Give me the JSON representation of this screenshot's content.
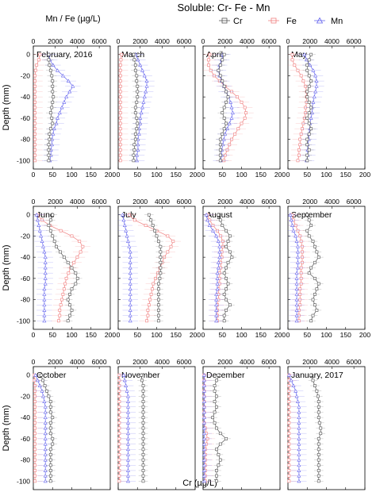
{
  "title": "Soluble: Cr- Fe - Mn",
  "top_axis_label": "Mn / Fe (µg/L)",
  "bottom_axis_label": "Cr (µg/L)",
  "y_axis_label": "Depth (mm)",
  "legend": [
    {
      "name": "Cr",
      "color": "#555555",
      "marker": "square"
    },
    {
      "name": "Fe",
      "color": "#f08080",
      "marker": "square"
    },
    {
      "name": "Mn",
      "color": "#6666ee",
      "marker": "triangle"
    }
  ],
  "chart_data": {
    "type": "scatter",
    "y_ticks": [
      0,
      -20,
      -40,
      -60,
      -80,
      -100
    ],
    "ylim": [
      -108,
      8
    ],
    "cr_ticks": [
      "0",
      "50",
      "100",
      "150",
      "200"
    ],
    "cr_xlim": [
      0,
      200
    ],
    "mnfe_ticks": [
      "0",
      "2000",
      "4000",
      "6000"
    ],
    "mnfe_xlim": [
      0,
      7000
    ],
    "depths": [
      0,
      -5,
      -10,
      -15,
      -20,
      -25,
      -30,
      -35,
      -40,
      -45,
      -50,
      -55,
      -60,
      -65,
      -70,
      -75,
      -80,
      -85,
      -90,
      -95,
      -100
    ],
    "panels": [
      {
        "label": "February, 2016",
        "Cr": [
          40,
          40,
          42,
          45,
          48,
          50,
          50,
          50,
          52,
          50,
          48,
          45,
          48,
          50,
          45,
          42,
          42,
          40,
          40,
          40,
          40
        ],
        "Fe": [
          600,
          500,
          300,
          200,
          150,
          150,
          150,
          150,
          150,
          150,
          150,
          150,
          150,
          150,
          150,
          150,
          150,
          150,
          150,
          150,
          150
        ],
        "Mn": [
          1400,
          1500,
          1800,
          2200,
          2700,
          3200,
          3600,
          3300,
          3000,
          2800,
          2600,
          2400,
          2200,
          2100,
          1900,
          1800,
          1700,
          1700,
          1600,
          1600,
          1500
        ]
      },
      {
        "label": "March",
        "Cr": [
          40,
          42,
          45,
          45,
          48,
          48,
          50,
          50,
          50,
          48,
          45,
          45,
          48,
          50,
          48,
          45,
          45,
          42,
          42,
          40,
          40
        ],
        "Fe": [
          300,
          250,
          200,
          200,
          200,
          200,
          200,
          200,
          200,
          200,
          200,
          200,
          200,
          200,
          200,
          200,
          200,
          200,
          200,
          200,
          200
        ],
        "Mn": [
          1600,
          1800,
          2000,
          2200,
          2400,
          2600,
          2600,
          2500,
          2400,
          2300,
          2200,
          2100,
          2000,
          2000,
          1900,
          1900,
          1800,
          1800,
          1800,
          1700,
          1700
        ]
      },
      {
        "label": "April",
        "Cr": [
          55,
          50,
          45,
          40,
          45,
          50,
          55,
          60,
          65,
          60,
          55,
          50,
          55,
          60,
          55,
          50,
          45,
          45,
          45,
          45,
          45
        ],
        "Fe": [
          600,
          500,
          500,
          700,
          1000,
          1500,
          2000,
          2600,
          3100,
          3500,
          3800,
          3900,
          3800,
          3500,
          3200,
          2900,
          2600,
          2400,
          2200,
          2000,
          1900
        ],
        "Mn": [
          1800,
          1700,
          1500,
          1400,
          1500,
          1700,
          1900,
          2100,
          2300,
          2500,
          2600,
          2700,
          2600,
          2400,
          2200,
          2000,
          1900,
          1800,
          1700,
          1700,
          1600
        ]
      },
      {
        "label": "May",
        "Cr": [
          60,
          55,
          50,
          50,
          55,
          60,
          55,
          50,
          50,
          55,
          60,
          55,
          50,
          55,
          60,
          55,
          50,
          50,
          55,
          50,
          50
        ],
        "Fe": [
          400,
          400,
          600,
          900,
          1200,
          1400,
          1600,
          1700,
          1700,
          1700,
          1600,
          1600,
          1500,
          1400,
          1300,
          1200,
          1100,
          1100,
          1000,
          1000,
          900
        ],
        "Mn": [
          1500,
          1700,
          2000,
          2300,
          2500,
          2600,
          2600,
          2500,
          2400,
          2300,
          2200,
          2200,
          2100,
          2000,
          2000,
          1900,
          1900,
          1800,
          1800,
          1800,
          1700
        ]
      },
      {
        "label": "June",
        "Cr": [
          50,
          45,
          40,
          45,
          50,
          55,
          60,
          70,
          80,
          90,
          100,
          110,
          115,
          110,
          100,
          95,
          90,
          95,
          100,
          95,
          90
        ],
        "Fe": [
          400,
          800,
          1500,
          2500,
          3500,
          4200,
          4500,
          4300,
          4000,
          3700,
          3400,
          3200,
          3000,
          2900,
          2800,
          2700,
          2600,
          2500,
          2400,
          2400,
          2300
        ],
        "Mn": [
          300,
          400,
          500,
          600,
          700,
          800,
          900,
          1000,
          1100,
          1100,
          1100,
          1100,
          1100,
          1100,
          1000,
          1000,
          1000,
          1000,
          1000,
          1000,
          1000
        ]
      },
      {
        "label": "July",
        "Cr": [
          80,
          85,
          90,
          95,
          100,
          105,
          110,
          110,
          110,
          110,
          110,
          110,
          108,
          105,
          105,
          105,
          105,
          105,
          105,
          105,
          105
        ],
        "Fe": [
          1000,
          1500,
          2500,
          3500,
          4500,
          5000,
          4800,
          4500,
          4200,
          4000,
          3800,
          3600,
          3400,
          3200,
          3100,
          3000,
          2900,
          2800,
          2700,
          2700,
          2600
        ],
        "Mn": [
          400,
          500,
          600,
          700,
          800,
          900,
          1000,
          1100,
          1100,
          1100,
          1100,
          1100,
          1100,
          1100,
          1100,
          1100,
          1100,
          1100,
          1100,
          1100,
          1100
        ]
      },
      {
        "label": "August",
        "Cr": [
          40,
          45,
          50,
          60,
          70,
          65,
          60,
          70,
          75,
          65,
          60,
          55,
          60,
          65,
          60,
          55,
          60,
          70,
          60,
          55,
          55
        ],
        "Fe": [
          400,
          600,
          900,
          1300,
          1600,
          1800,
          1800,
          1700,
          1700,
          1600,
          1600,
          1500,
          1500,
          1500,
          1400,
          1400,
          1400,
          1300,
          1300,
          1300,
          1300
        ],
        "Mn": [
          300,
          400,
          600,
          900,
          1200,
          1400,
          1500,
          1500,
          1500,
          1400,
          1400,
          1300,
          1300,
          1300,
          1300,
          1200,
          1200,
          1200,
          1200,
          1200,
          1200
        ]
      },
      {
        "label": "September",
        "Cr": [
          50,
          55,
          60,
          50,
          55,
          65,
          70,
          75,
          80,
          70,
          60,
          55,
          70,
          80,
          75,
          70,
          65,
          70,
          75,
          65,
          60
        ],
        "Fe": [
          400,
          500,
          700,
          900,
          1100,
          1200,
          1300,
          1300,
          1300,
          1300,
          1200,
          1200,
          1200,
          1200,
          1100,
          1100,
          1100,
          1100,
          1000,
          1000,
          1000
        ],
        "Mn": [
          200,
          300,
          400,
          500,
          700,
          800,
          900,
          900,
          900,
          900,
          900,
          800,
          800,
          800,
          800,
          800,
          800,
          800,
          800,
          800,
          800
        ]
      },
      {
        "label": "October",
        "Cr": [
          20,
          25,
          30,
          35,
          40,
          45,
          45,
          45,
          50,
          45,
          45,
          45,
          50,
          50,
          45,
          45,
          45,
          45,
          45,
          45,
          45
        ],
        "Fe": [
          100,
          100,
          150,
          150,
          150,
          150,
          150,
          150,
          150,
          150,
          150,
          150,
          150,
          150,
          150,
          150,
          150,
          150,
          150,
          150,
          150
        ],
        "Mn": [
          200,
          400,
          600,
          800,
          900,
          1000,
          1100,
          1100,
          1100,
          1100,
          1100,
          1100,
          1100,
          1100,
          1100,
          1100,
          1100,
          1100,
          1100,
          1100,
          1100
        ]
      },
      {
        "label": "November",
        "Cr": [
          60,
          62,
          65,
          65,
          65,
          65,
          65,
          65,
          65,
          65,
          65,
          65,
          65,
          65,
          65,
          65,
          65,
          65,
          65,
          65,
          65
        ],
        "Fe": [
          100,
          100,
          100,
          100,
          100,
          100,
          100,
          100,
          100,
          100,
          100,
          100,
          100,
          100,
          100,
          100,
          100,
          100,
          100,
          100,
          100
        ],
        "Mn": [
          500,
          600,
          700,
          800,
          900,
          900,
          900,
          900,
          900,
          900,
          900,
          900,
          900,
          900,
          900,
          900,
          900,
          900,
          900,
          900,
          900
        ]
      },
      {
        "label": "December",
        "Cr": [
          40,
          35,
          30,
          30,
          35,
          30,
          35,
          30,
          25,
          30,
          35,
          45,
          60,
          45,
          35,
          40,
          45,
          40,
          35,
          35,
          35
        ],
        "Fe": [
          100,
          100,
          100,
          100,
          100,
          100,
          100,
          100,
          100,
          100,
          200,
          300,
          400,
          300,
          200,
          200,
          200,
          200,
          200,
          200,
          200
        ],
        "Mn": [
          100,
          100,
          100,
          100,
          100,
          100,
          100,
          100,
          100,
          100,
          100,
          100,
          100,
          100,
          100,
          100,
          100,
          100,
          100,
          100,
          100
        ]
      },
      {
        "label": "January, 2017",
        "Cr": [
          60,
          65,
          70,
          75,
          78,
          80,
          80,
          80,
          80,
          82,
          85,
          85,
          80,
          80,
          80,
          80,
          80,
          80,
          80,
          80,
          80
        ],
        "Fe": [
          100,
          100,
          100,
          100,
          100,
          100,
          100,
          100,
          100,
          100,
          100,
          100,
          100,
          100,
          100,
          100,
          100,
          100,
          100,
          100,
          100
        ],
        "Mn": [
          100,
          300,
          500,
          700,
          800,
          900,
          1000,
          1000,
          1000,
          1000,
          1000,
          1000,
          1000,
          1000,
          1000,
          1000,
          1000,
          1000,
          1000,
          1000,
          1000
        ]
      }
    ]
  }
}
